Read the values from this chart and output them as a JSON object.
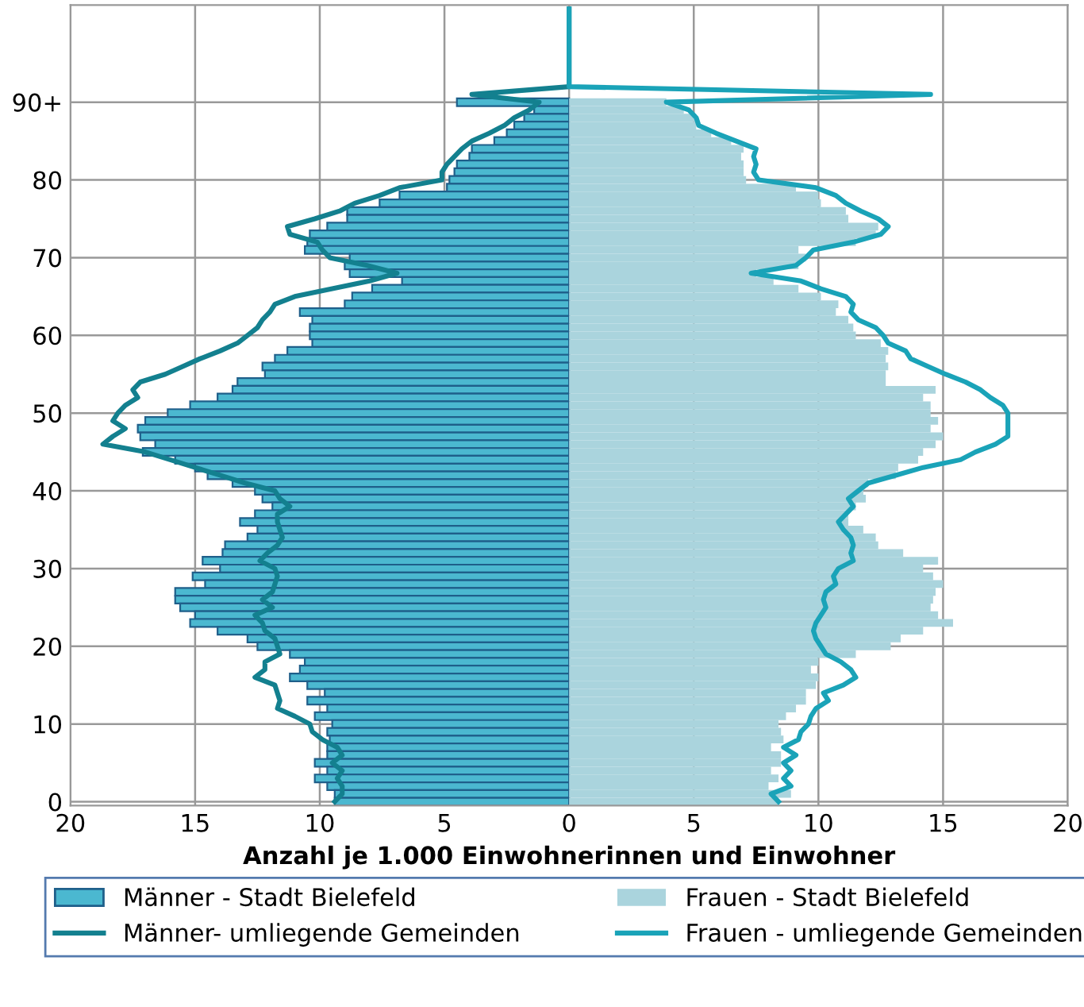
{
  "chart_data": {
    "type": "bar",
    "orientation": "horizontal",
    "stacked": true,
    "xlabel": "Anzahl je 1.000 Einwohnerinnen und Einwohner",
    "categories": [
      null,
      null,
      null,
      null,
      null,
      null,
      null,
      null,
      null,
      null,
      null,
      null,
      "90+",
      null,
      null,
      null,
      null,
      null,
      null,
      null,
      null,
      null,
      "80",
      null,
      null,
      null,
      null,
      null,
      null,
      null,
      null,
      null,
      "70",
      null,
      null,
      null,
      null,
      null,
      null,
      null,
      null,
      null,
      "60",
      null,
      null,
      null,
      null,
      null,
      null,
      null,
      null,
      null,
      "50",
      null,
      null,
      null,
      null,
      null,
      null,
      null,
      null,
      null,
      "40",
      null,
      null,
      null,
      null,
      null,
      null,
      null,
      null,
      null,
      "30",
      null,
      null,
      null,
      null,
      null,
      null,
      null,
      null,
      null,
      "20",
      null,
      null,
      null,
      null,
      null,
      null,
      null,
      null,
      null,
      "10",
      null,
      null,
      null,
      null,
      null,
      null,
      null,
      null,
      null,
      "0"
    ],
    "xlim": [
      -20,
      20
    ],
    "xticks": [
      {
        "value": -20,
        "label": "20"
      },
      {
        "value": -15,
        "label": "15"
      },
      {
        "value": -10,
        "label": "10"
      },
      {
        "value": -5,
        "label": "5"
      },
      0,
      5,
      10,
      15,
      20
    ],
    "grid": true,
    "legend": "bottom",
    "series": [
      {
        "name": "Männer - Stadt Bielefeld",
        "color": "#4bb8d0",
        "values": [
          null,
          null,
          null,
          null,
          null,
          null,
          null,
          null,
          null,
          null,
          null,
          null,
          -4.5,
          -1.4,
          -1.8,
          -2.2,
          -2.5,
          -3.0,
          -3.9,
          -4.0,
          -4.5,
          -4.6,
          -4.8,
          -4.9,
          -6.8,
          -7.6,
          -8.9,
          -8.9,
          -9.7,
          -10.4,
          -10.5,
          -10.6,
          -8.8,
          -9.0,
          -8.8,
          -6.7,
          -7.9,
          -8.7,
          -9.0,
          -10.8,
          -10.3,
          -10.4,
          -10.4,
          -10.3,
          -11.3,
          -11.8,
          -12.3,
          -12.2,
          -13.3,
          -13.5,
          -14.1,
          -15.2,
          -16.1,
          -17.0,
          -17.3,
          -17.2,
          -16.6,
          -17.1,
          -15.8,
          -15.0,
          -14.5,
          -13.5,
          -12.6,
          -12.3,
          -11.9,
          -12.6,
          -13.2,
          -12.5,
          -12.9,
          -13.8,
          -13.9,
          -14.7,
          -14.0,
          -15.1,
          -14.6,
          -15.8,
          -15.8,
          -15.6,
          -15.0,
          -15.2,
          -14.1,
          -12.9,
          -12.5,
          -11.2,
          -10.6,
          -10.8,
          -11.2,
          -10.5,
          -9.8,
          -10.5,
          -9.7,
          -10.2,
          -9.5,
          -9.7,
          -9.6,
          -9.7,
          -9.7,
          -10.2,
          -9.7,
          -10.2,
          -9.7,
          -9.4,
          -9.4
        ]
      },
      {
        "name": "Frauen - Stadt Bielefeld",
        "color": "#aad4dd",
        "values": [
          null,
          null,
          null,
          null,
          null,
          null,
          null,
          null,
          null,
          null,
          null,
          null,
          3.9,
          4.6,
          5.1,
          5.1,
          5.7,
          6.5,
          7.0,
          6.9,
          7.0,
          7.0,
          7.1,
          9.1,
          10.0,
          10.1,
          11.1,
          11.2,
          12.4,
          12.3,
          11.5,
          9.2,
          9.5,
          9.2,
          7.5,
          8.2,
          9.2,
          10.1,
          10.8,
          10.7,
          11.2,
          11.4,
          11.5,
          12.5,
          12.8,
          12.7,
          12.8,
          12.7,
          12.7,
          14.7,
          14.2,
          14.5,
          14.5,
          14.8,
          14.5,
          15.0,
          14.7,
          14.2,
          14.0,
          13.2,
          13.1,
          12.0,
          11.8,
          11.9,
          11.5,
          11.2,
          11.2,
          11.8,
          12.3,
          12.4,
          13.4,
          14.8,
          14.2,
          14.6,
          15.0,
          14.7,
          14.6,
          14.5,
          14.8,
          15.4,
          14.2,
          13.3,
          12.9,
          11.5,
          10.0,
          9.7,
          10.0,
          9.9,
          9.5,
          9.5,
          9.1,
          8.7,
          8.4,
          8.5,
          8.6,
          8.1,
          8.5,
          8.5,
          8.1,
          8.4,
          8.0,
          8.9,
          8.4
        ]
      },
      {
        "name": "Männer- umliegende Gemeinden",
        "type": "line",
        "color": "#13808f",
        "values": [
          0,
          0,
          0,
          0,
          0,
          0,
          0,
          0,
          0,
          0,
          0,
          -3.9,
          -1.2,
          -1.6,
          -2.2,
          -2.6,
          -3.2,
          -3.9,
          -4.3,
          -4.6,
          -4.9,
          -5.1,
          -5.1,
          -6.8,
          -7.6,
          -8.6,
          -9.2,
          -10.2,
          -11.3,
          -11.2,
          -10.1,
          -9.9,
          -9.6,
          -8.1,
          -6.9,
          -8.0,
          -9.5,
          -11.0,
          -11.8,
          -12.0,
          -12.3,
          -12.5,
          -12.9,
          -13.3,
          -14.0,
          -14.8,
          -15.5,
          -16.2,
          -17.2,
          -17.5,
          -17.3,
          -17.8,
          -18.1,
          -18.3,
          -17.8,
          -18.3,
          -18.7,
          -17.0,
          -16.0,
          -15.0,
          -14.0,
          -13.0,
          -11.8,
          -11.6,
          -11.2,
          -11.7,
          -11.7,
          -11.6,
          -11.5,
          -11.7,
          -12.1,
          -12.4,
          -11.8,
          -11.7,
          -11.8,
          -11.9,
          -12.3,
          -11.9,
          -12.6,
          -12.3,
          -12.2,
          -11.8,
          -11.7,
          -11.6,
          -12.2,
          -12.2,
          -12.6,
          -11.8,
          -11.7,
          -11.6,
          -11.7,
          -11.0,
          -10.4,
          -10.3,
          -9.9,
          -9.3,
          -9.1,
          -9.5,
          -9.1,
          -9.3,
          -9.1,
          -9.1,
          -9.4
        ]
      },
      {
        "name": "Frauen - umliegende Gemeinden",
        "type": "line",
        "color": "#1aa3b8",
        "values": [
          0,
          0,
          0,
          0,
          0,
          0,
          0,
          0,
          0,
          0,
          0,
          14.5,
          3.9,
          4.8,
          5.1,
          5.2,
          5.9,
          6.7,
          7.5,
          7.4,
          7.5,
          7.4,
          7.6,
          9.9,
          10.7,
          11.1,
          11.7,
          12.4,
          12.8,
          12.5,
          11.4,
          9.8,
          9.5,
          9.1,
          7.3,
          9.3,
          10.1,
          11.1,
          11.4,
          11.3,
          11.6,
          12.3,
          12.6,
          12.8,
          13.5,
          13.7,
          14.4,
          15.1,
          15.9,
          16.5,
          16.9,
          17.4,
          17.6,
          17.6,
          17.6,
          17.6,
          17.1,
          16.3,
          15.7,
          14.2,
          13.1,
          12.0,
          11.6,
          11.2,
          11.4,
          11.1,
          10.8,
          11.0,
          11.3,
          11.4,
          11.3,
          11.4,
          10.8,
          10.6,
          10.7,
          10.3,
          10.2,
          10.3,
          10.1,
          9.9,
          9.8,
          9.9,
          10.1,
          10.3,
          10.9,
          11.3,
          11.5,
          11.0,
          10.2,
          10.4,
          9.9,
          9.7,
          9.6,
          9.3,
          9.2,
          8.6,
          9.1,
          8.6,
          8.9,
          8.6,
          8.9,
          8.1,
          8.4
        ]
      }
    ]
  }
}
